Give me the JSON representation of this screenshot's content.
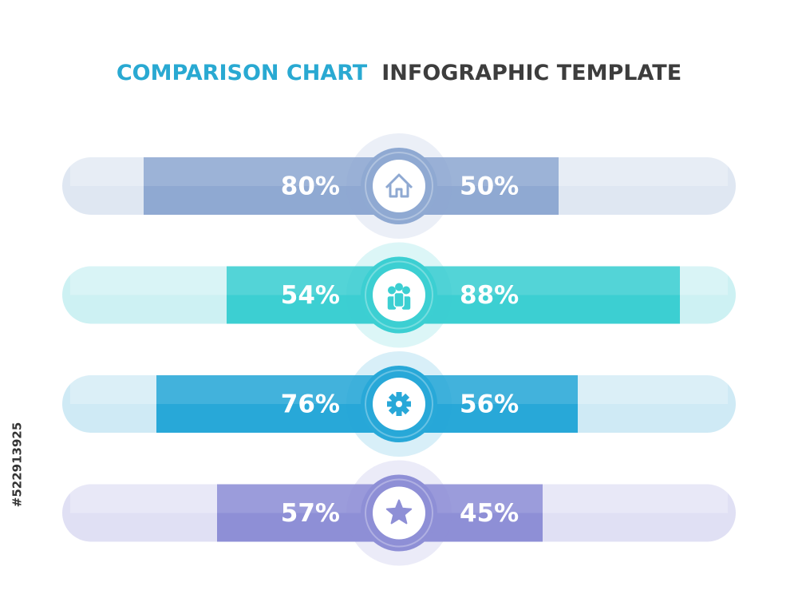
{
  "chart_data": {
    "type": "diverging-bar",
    "title": "COMPARISON CHART",
    "subtitle": "INFOGRAPHIC TEMPLATE",
    "title_color": "#29a9d2",
    "subtitle_color": "#3d3d3d",
    "xlim": [
      0,
      100
    ],
    "series": [
      {
        "side": "left",
        "values": [
          80,
          54,
          76,
          57
        ],
        "value_labels": [
          "80%",
          "54%",
          "76%",
          "57%"
        ]
      },
      {
        "side": "right",
        "values": [
          50,
          88,
          56,
          45
        ],
        "value_labels": [
          "50%",
          "88%",
          "56%",
          "45%"
        ]
      }
    ],
    "colors": [
      "#8fa9d2",
      "#3ccfd2",
      "#28a8d8",
      "#8e8fd6"
    ],
    "track_colors": [
      "#dfe7f2",
      "#cdf1f3",
      "#cfeaf5",
      "#e0e0f4"
    ],
    "watermark_id": "#522913925"
  }
}
